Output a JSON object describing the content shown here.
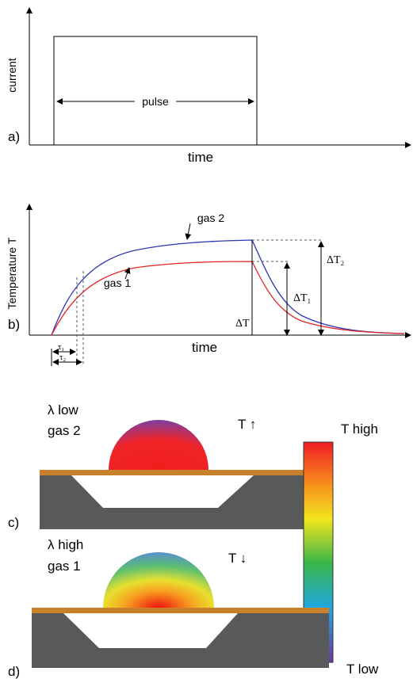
{
  "panel_a": {
    "y_label": "current",
    "pulse_label": "pulse",
    "x_label": "time",
    "tag": "a)"
  },
  "panel_b": {
    "y_label": "Temperature T",
    "x_label": "time",
    "tag": "b)",
    "gas2_label": "gas 2",
    "gas1_label": "gas 1",
    "delta_t": "ΔT",
    "delta_t1": "ΔT₁",
    "delta_t2": "ΔT₂",
    "tau1": "τ₁",
    "tau2": "τ₂"
  },
  "panel_c": {
    "lambda": "λ   low",
    "gas": "gas 2",
    "temp": "T ↑",
    "tag": "c)"
  },
  "panel_d": {
    "lambda": "λ   high",
    "gas": "gas 1",
    "temp": "T ↓",
    "tag": "d)"
  },
  "colorbar": {
    "top_label": "T  high",
    "bottom_label": "T low"
  }
}
